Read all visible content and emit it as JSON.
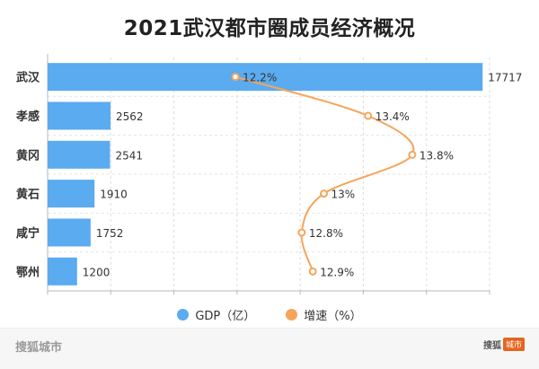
{
  "chart_data": {
    "type": "bar+line",
    "title": "2021武汉都市圈成员经济概况",
    "categories": [
      "武汉",
      "孝感",
      "黄冈",
      "黄石",
      "咸宁",
      "鄂州"
    ],
    "series": [
      {
        "name": "GDP（亿）",
        "type": "bar",
        "orientation": "horizontal",
        "color": "#5aabf0",
        "values": [
          17717,
          2562,
          2541,
          1910,
          1752,
          1200
        ],
        "labels": [
          "17717",
          "2562",
          "2541",
          "1910",
          "1752",
          "1200"
        ]
      },
      {
        "name": "增速（%）",
        "type": "line",
        "color": "#f5a55b",
        "values": [
          12.2,
          13.4,
          13.8,
          13.0,
          12.8,
          12.9
        ],
        "labels": [
          "12.2%",
          "13.4%",
          "13.8%",
          "13%",
          "12.8%",
          "12.9%"
        ],
        "range": [
          10.5,
          14.5
        ]
      }
    ],
    "xlim": [
      0,
      18000
    ],
    "grid": true,
    "legend_position": "bottom"
  },
  "footer": {
    "brand": "搜狐城市",
    "logo_main": "搜狐",
    "logo_tag": "城市"
  }
}
